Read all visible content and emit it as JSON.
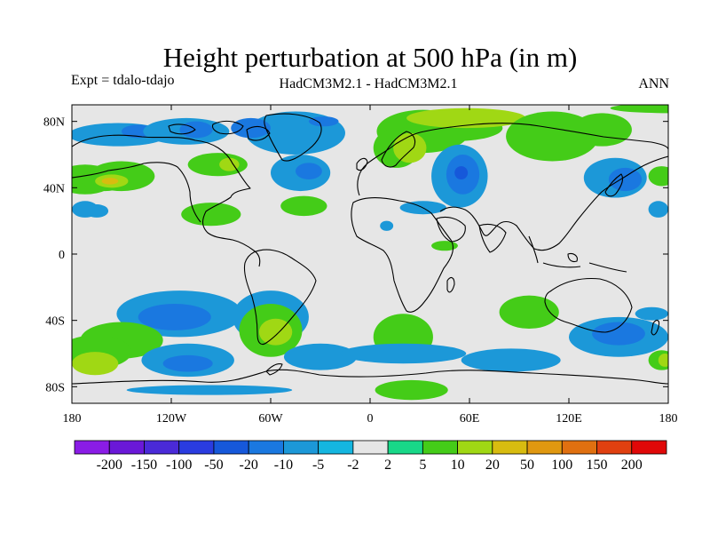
{
  "title": "Height perturbation at 500 hPa (in m)",
  "subtitle_left": "Expt = tdalo-tdajo",
  "subtitle_center": "HadCM3M2.1 - HadCM3M2.1",
  "subtitle_right": "ANN",
  "map": {
    "projection": "cylindrical-equidistant",
    "lon_range": [
      -180,
      180
    ],
    "lat_range": [
      -90,
      90
    ],
    "x_ticks": [
      {
        "lon": -180,
        "label": "180"
      },
      {
        "lon": -120,
        "label": "120W"
      },
      {
        "lon": -60,
        "label": "60W"
      },
      {
        "lon": 0,
        "label": "0"
      },
      {
        "lon": 60,
        "label": "60E"
      },
      {
        "lon": 120,
        "label": "120E"
      },
      {
        "lon": 180,
        "label": "180"
      }
    ],
    "y_ticks": [
      {
        "lat": 80,
        "label": "80N"
      },
      {
        "lat": 40,
        "label": "40N"
      },
      {
        "lat": 0,
        "label": "0"
      },
      {
        "lat": -40,
        "label": "40S"
      },
      {
        "lat": -80,
        "label": "80S"
      }
    ],
    "ocean_color": "#e6e6e6",
    "coast_color": "#000000"
  },
  "colorbar": {
    "colors": [
      "#8a1ce6",
      "#6a18d8",
      "#4a2ad8",
      "#2a3ce0",
      "#1658da",
      "#1a78e0",
      "#1c98d8",
      "#14b6e0",
      "#e6e6e6",
      "#18d888",
      "#44cc18",
      "#a0d814",
      "#d8bc10",
      "#e09810",
      "#e07010",
      "#e04010",
      "#e00808"
    ],
    "labels": [
      "-200",
      "-150",
      "-100",
      "-50",
      "-20",
      "-10",
      "-5",
      "-2",
      "2",
      "5",
      "10",
      "20",
      "50",
      "100",
      "150",
      "200"
    ]
  },
  "chart_data": {
    "type": "heatmap",
    "variable": "Height perturbation at 500 hPa",
    "units": "m",
    "contour_levels": [
      -200,
      -150,
      -100,
      -50,
      -20,
      -10,
      -5,
      -2,
      2,
      5,
      10,
      20,
      50,
      100,
      150,
      200
    ],
    "regions": [
      {
        "lon": 180,
        "lat": 88,
        "rx": 35,
        "ry": 3,
        "level": 5
      },
      {
        "lon": -152,
        "lat": 72,
        "rx": 30,
        "ry": 7,
        "level": -5
      },
      {
        "lon": -140,
        "lat": 74,
        "rx": 10,
        "ry": 4,
        "level": -10
      },
      {
        "lon": -111,
        "lat": 74,
        "rx": 26,
        "ry": 8,
        "level": -5
      },
      {
        "lon": -105,
        "lat": 75,
        "rx": 10,
        "ry": 5,
        "level": -10
      },
      {
        "lon": -45,
        "lat": 73,
        "rx": 30,
        "ry": 13,
        "level": -5
      },
      {
        "lon": -72,
        "lat": 76,
        "rx": 12,
        "ry": 6,
        "level": -10
      },
      {
        "lon": -28,
        "lat": 80,
        "rx": 9,
        "ry": 3,
        "level": -10
      },
      {
        "lon": -42,
        "lat": 49,
        "rx": 18,
        "ry": 11,
        "level": -5
      },
      {
        "lon": -37,
        "lat": 50,
        "rx": 8,
        "ry": 5,
        "level": -10
      },
      {
        "lon": -172,
        "lat": 45,
        "rx": 18,
        "ry": 9,
        "level": 5
      },
      {
        "lon": -160,
        "lat": 45,
        "rx": 14,
        "ry": 7,
        "level": 5
      },
      {
        "lon": -150,
        "lat": 47,
        "rx": 20,
        "ry": 9,
        "level": 5
      },
      {
        "lon": -156,
        "lat": 44,
        "rx": 10,
        "ry": 4,
        "level": 10
      },
      {
        "lon": -157,
        "lat": 44,
        "rx": 5,
        "ry": 2,
        "level": 20
      },
      {
        "lon": -172,
        "lat": 27,
        "rx": 8,
        "ry": 5,
        "level": -5
      },
      {
        "lon": -165,
        "lat": 26,
        "rx": 7,
        "ry": 4,
        "level": -5
      },
      {
        "lon": -92,
        "lat": 54,
        "rx": 18,
        "ry": 7,
        "level": 5
      },
      {
        "lon": -85,
        "lat": 54,
        "rx": 6,
        "ry": 4,
        "level": 10
      },
      {
        "lon": -40,
        "lat": 29,
        "rx": 14,
        "ry": 6,
        "level": 5
      },
      {
        "lon": 32,
        "lat": 74,
        "rx": 28,
        "ry": 13,
        "level": 5
      },
      {
        "lon": 50,
        "lat": 76,
        "rx": 30,
        "ry": 8,
        "level": 5
      },
      {
        "lon": 16,
        "lat": 64,
        "rx": 14,
        "ry": 12,
        "level": 5
      },
      {
        "lon": 24,
        "lat": 64,
        "rx": 10,
        "ry": 9,
        "level": 10
      },
      {
        "lon": 58,
        "lat": 82,
        "rx": 36,
        "ry": 6,
        "level": 10
      },
      {
        "lon": 110,
        "lat": 71,
        "rx": 28,
        "ry": 15,
        "level": 5
      },
      {
        "lon": 140,
        "lat": 75,
        "rx": 18,
        "ry": 10,
        "level": 5
      },
      {
        "lon": 54,
        "lat": 47,
        "rx": 17,
        "ry": 19,
        "level": -5
      },
      {
        "lon": 54,
        "lat": 47,
        "rx": 14,
        "ry": 15,
        "level": -5
      },
      {
        "lon": 56,
        "lat": 48,
        "rx": 10,
        "ry": 12,
        "level": -10
      },
      {
        "lon": 55,
        "lat": 49,
        "rx": 4,
        "ry": 4,
        "level": -20
      },
      {
        "lon": 32,
        "lat": 28,
        "rx": 14,
        "ry": 4,
        "level": -5
      },
      {
        "lon": 148,
        "lat": 46,
        "rx": 19,
        "ry": 12,
        "level": -5
      },
      {
        "lon": 154,
        "lat": 45,
        "rx": 10,
        "ry": 7,
        "level": -10
      },
      {
        "lon": 176,
        "lat": 47,
        "rx": 8,
        "ry": 6,
        "level": 5
      },
      {
        "lon": 174,
        "lat": 27,
        "rx": 6,
        "ry": 5,
        "level": -5
      },
      {
        "lon": -96,
        "lat": 24,
        "rx": 18,
        "ry": 7,
        "level": 5
      },
      {
        "lon": 45,
        "lat": 5,
        "rx": 8,
        "ry": 3,
        "level": 5
      },
      {
        "lon": -115,
        "lat": -36,
        "rx": 38,
        "ry": 14,
        "level": -5
      },
      {
        "lon": -118,
        "lat": -38,
        "rx": 22,
        "ry": 8,
        "level": -10
      },
      {
        "lon": -60,
        "lat": -38,
        "rx": 23,
        "ry": 16,
        "level": -5
      },
      {
        "lon": -60,
        "lat": -46,
        "rx": 19,
        "ry": 16,
        "level": 5
      },
      {
        "lon": -57,
        "lat": -47,
        "rx": 10,
        "ry": 8,
        "level": 10
      },
      {
        "lon": -150,
        "lat": -52,
        "rx": 25,
        "ry": 11,
        "level": 5
      },
      {
        "lon": -166,
        "lat": -59,
        "rx": 22,
        "ry": 10,
        "level": 5
      },
      {
        "lon": -166,
        "lat": -66,
        "rx": 14,
        "ry": 7,
        "level": 10
      },
      {
        "lon": -110,
        "lat": -64,
        "rx": 28,
        "ry": 10,
        "level": -5
      },
      {
        "lon": -110,
        "lat": -66,
        "rx": 15,
        "ry": 5,
        "level": -10
      },
      {
        "lon": -30,
        "lat": -62,
        "rx": 22,
        "ry": 8,
        "level": -5
      },
      {
        "lon": 20,
        "lat": -50,
        "rx": 18,
        "ry": 14,
        "level": 5
      },
      {
        "lon": 20,
        "lat": -60,
        "rx": 38,
        "ry": 6,
        "level": -5
      },
      {
        "lon": 96,
        "lat": -35,
        "rx": 18,
        "ry": 10,
        "level": 5
      },
      {
        "lon": 85,
        "lat": -64,
        "rx": 30,
        "ry": 7,
        "level": -5
      },
      {
        "lon": 150,
        "lat": -50,
        "rx": 30,
        "ry": 12,
        "level": -5
      },
      {
        "lon": 150,
        "lat": -48,
        "rx": 16,
        "ry": 7,
        "level": -10
      },
      {
        "lon": 170,
        "lat": -36,
        "rx": 10,
        "ry": 4,
        "level": -5
      },
      {
        "lon": 176,
        "lat": -64,
        "rx": 8,
        "ry": 6,
        "level": 5
      },
      {
        "lon": 178,
        "lat": -64,
        "rx": 4,
        "ry": 4,
        "level": 10
      },
      {
        "lon": 25,
        "lat": -82,
        "rx": 22,
        "ry": 6,
        "level": 5
      },
      {
        "lon": -97,
        "lat": -82,
        "rx": 50,
        "ry": 3,
        "level": -5
      },
      {
        "lon": 10,
        "lat": 17,
        "rx": 4,
        "ry": 3,
        "level": -5
      }
    ]
  }
}
